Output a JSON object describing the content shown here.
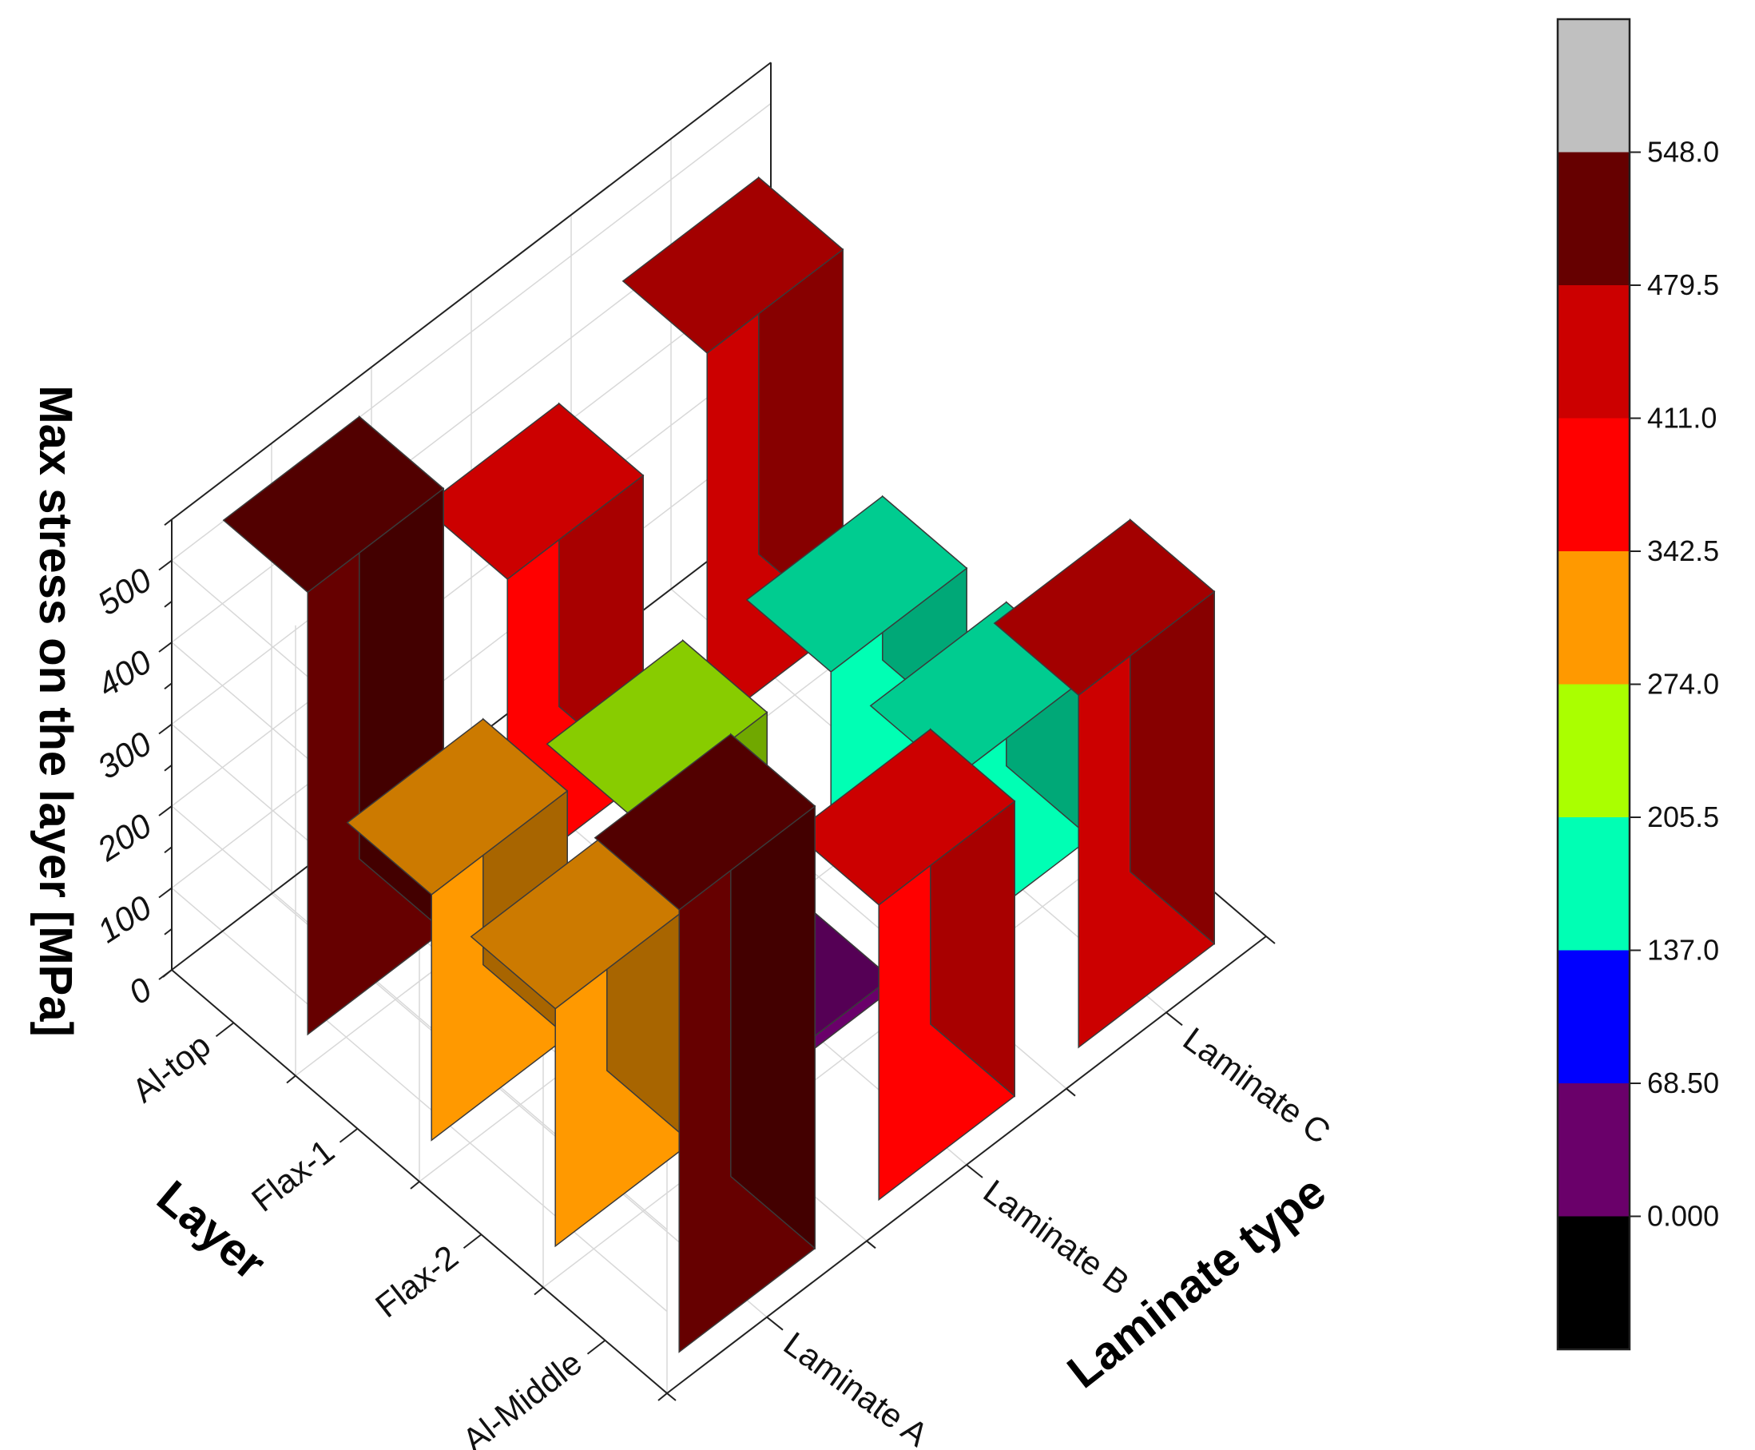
{
  "chart_data": {
    "type": "bar3d",
    "xlabel": "Layer",
    "ylabel": "Laminate type",
    "zlabel": "Max stress on the layer [MPa]",
    "x_categories": [
      "Al-top",
      "Flax-1",
      "Flax-2",
      "Al-Middle"
    ],
    "y_categories": [
      "Laminate A",
      "Laminate B",
      "Laminate C"
    ],
    "z_ticks": [
      "0",
      "100",
      "200",
      "300",
      "400",
      "500"
    ],
    "zlim": [
      0,
      550
    ],
    "series": [
      {
        "name": "Laminate A",
        "values": [
          540,
          300,
          290,
          540
        ]
      },
      {
        "name": "Laminate B",
        "values": [
          370,
          210,
          15,
          360
        ]
      },
      {
        "name": "Laminate C",
        "values": [
          460,
          200,
          200,
          430
        ]
      }
    ],
    "colorbar": {
      "tick_labels": [
        "0.000",
        "68.50",
        "137.0",
        "205.5",
        "274.0",
        "342.5",
        "411.0",
        "479.5",
        "548.0"
      ],
      "levels": [
        0,
        68.5,
        137,
        205.5,
        274,
        342.5,
        411,
        479.5,
        548
      ],
      "colors": [
        "#000000",
        "#6a006a",
        "#0000ff",
        "#00ffb4",
        "#aaff00",
        "#ff9900",
        "#ff0000",
        "#cc0000",
        "#660000",
        "#c0c0c0"
      ]
    }
  }
}
